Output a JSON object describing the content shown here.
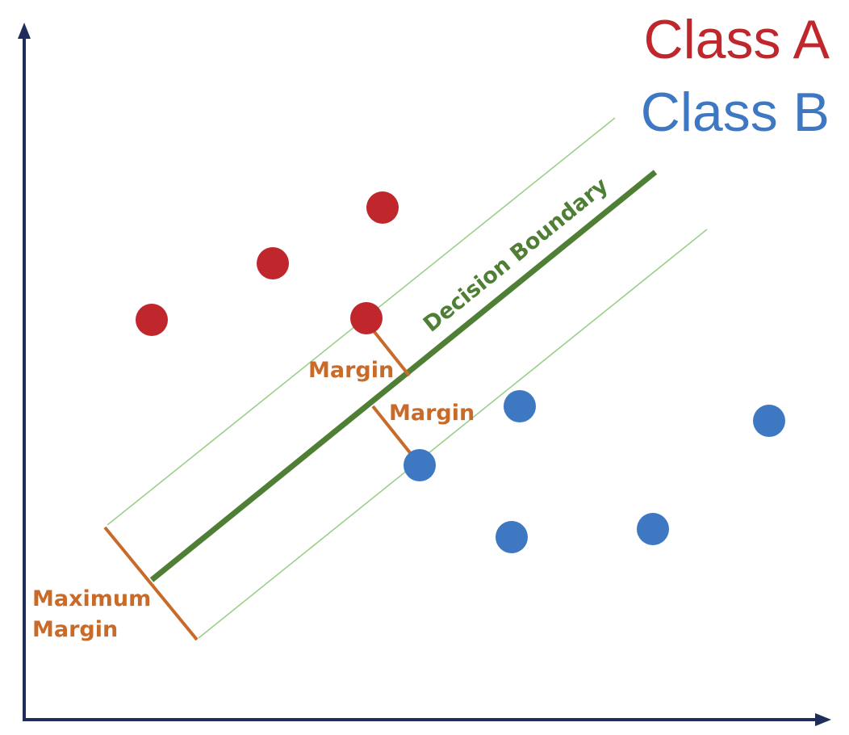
{
  "legend": {
    "class_a": "Class A",
    "class_b": "Class B"
  },
  "labels": {
    "decision_boundary": "Decision Boundary",
    "margin_upper": "Margin",
    "margin_lower": "Margin",
    "maximum_margin_line1": "Maximum",
    "maximum_margin_line2": "Margin"
  },
  "colors": {
    "axis": "#1f2d5a",
    "class_a": "#c0272d",
    "class_b": "#3e78c2",
    "decision_boundary": "#4f7f35",
    "margin_lines": "#9ad08a",
    "margin_measure": "#c86b2a",
    "background": "#ffffff"
  }
}
